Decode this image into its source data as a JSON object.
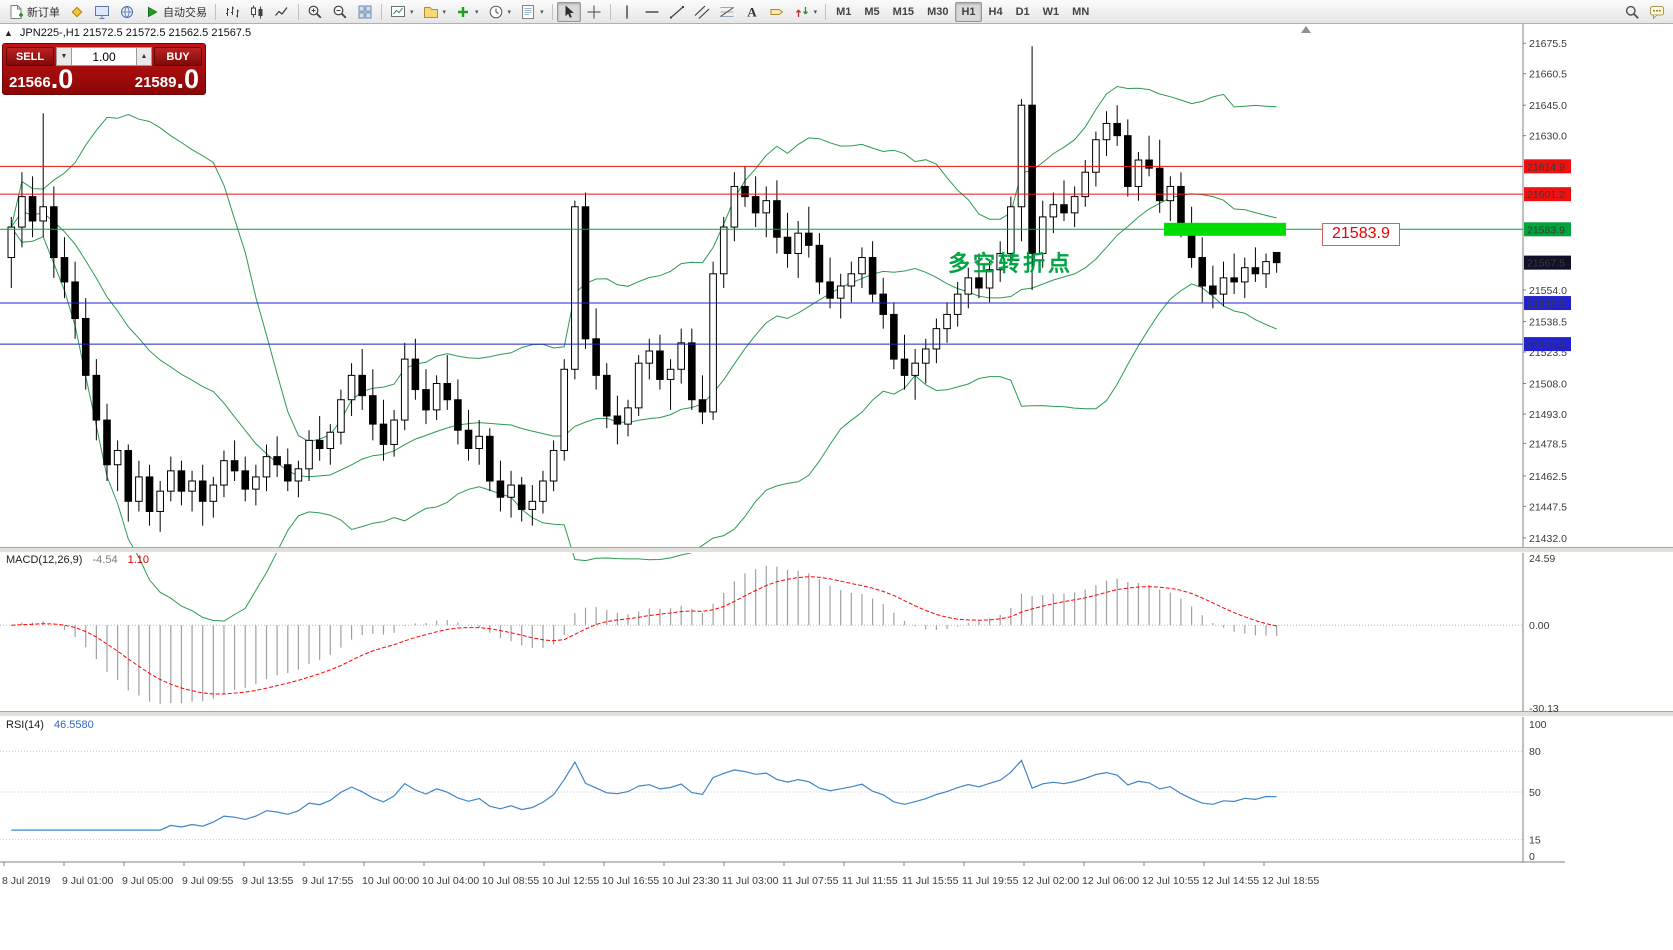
{
  "colors": {
    "red_line": "#ee1111",
    "green_line": "#00a33c",
    "blue_line": "#2222cc",
    "lime_highlight": "#00dd00",
    "panel_red": "#a31010",
    "bollinger": "#2c9b50",
    "macd_hist": "#a0a0a0",
    "macd_signal": "#ff0000",
    "rsi_line": "#3d85c8",
    "current_price_badge": "#101028"
  },
  "toolbar": {
    "caret_char": "▾",
    "groups": [
      {
        "items": [
          {
            "name": "new-order-button",
            "icon": "new-order",
            "label": "新订单"
          }
        ]
      },
      {
        "items": [
          {
            "name": "metaeditor-button",
            "icon": "diamond"
          },
          {
            "name": "market-watch-button",
            "icon": "monitor"
          },
          {
            "name": "community-button",
            "icon": "globe"
          },
          {
            "name": "autotrading-button",
            "icon": "play",
            "label": "自动交易"
          }
        ]
      },
      {
        "sep": true
      },
      {
        "items": [
          {
            "name": "bar-chart-button",
            "icon": "bars"
          },
          {
            "name": "candlestick-chart-button",
            "icon": "candles"
          },
          {
            "name": "line-chart-button",
            "icon": "linechart"
          }
        ]
      },
      {
        "sep": true
      },
      {
        "items": [
          {
            "name": "zoom-in-button",
            "icon": "zoom-in"
          },
          {
            "name": "zoom-out-button",
            "icon": "zoom-out"
          },
          {
            "name": "tile-windows-button",
            "icon": "grid"
          }
        ]
      },
      {
        "sep": true
      },
      {
        "items": [
          {
            "name": "new-chart-button",
            "icon": "new-chart",
            "caret": true
          },
          {
            "name": "profiles-button",
            "icon": "folder",
            "caret": true
          },
          {
            "name": "indicators-button",
            "icon": "indicators",
            "caret": true
          },
          {
            "name": "periods-button",
            "icon": "clock",
            "caret": true
          },
          {
            "name": "templates-button",
            "icon": "template",
            "caret": true
          }
        ]
      },
      {
        "sep": true
      },
      {
        "items": [
          {
            "name": "cursor-button",
            "icon": "cursor",
            "active": true
          },
          {
            "name": "crosshair-button",
            "icon": "crosshair"
          }
        ]
      },
      {
        "sep": true
      },
      {
        "items": [
          {
            "name": "vertical-line-button",
            "icon": "vline"
          },
          {
            "name": "horizontal-line-button",
            "icon": "hline"
          },
          {
            "name": "trendline-button",
            "icon": "trend"
          },
          {
            "name": "channel-button",
            "icon": "channel"
          },
          {
            "name": "fibonacci-button",
            "icon": "fibo"
          },
          {
            "name": "text-button",
            "icon": "text"
          },
          {
            "name": "label-button",
            "icon": "label"
          },
          {
            "name": "arrows-button",
            "icon": "arrows",
            "caret": true
          }
        ]
      },
      {
        "sep": true
      },
      {
        "timeframes": [
          "M1",
          "M5",
          "M15",
          "M30",
          "H1",
          "H4",
          "D1",
          "W1",
          "MN"
        ],
        "active": "H1"
      },
      {
        "spacer": true
      },
      {
        "items": [
          {
            "name": "search-button",
            "icon": "search"
          },
          {
            "name": "chat-button",
            "icon": "chat"
          }
        ]
      }
    ]
  },
  "symbol_bar": {
    "collapse_icon": "▲",
    "text": "JPN225-,H1  21572.5 21572.5 21562.5 21567.5"
  },
  "one_click": {
    "sell_label": "SELL",
    "buy_label": "BUY",
    "volume": "1.00",
    "spin_up": "▲",
    "spin_down": "▼",
    "sell_price": {
      "main": "21566",
      "frac": ".0"
    },
    "buy_price": {
      "main": "21589",
      "frac": ".0"
    }
  },
  "macd": {
    "name": "MACD(12,26,9)",
    "value_main": "-4.54",
    "value_signal": "1.10",
    "axis_labels": [
      "24.59",
      "0.00",
      "-30.13"
    ],
    "axis_values": [
      24.59,
      0,
      -30.13
    ]
  },
  "rsi": {
    "name": "RSI(14)",
    "value": "46.5580",
    "axis_labels": [
      "100",
      "80",
      "50",
      "15",
      "0"
    ],
    "axis_values": [
      100,
      80,
      50,
      15,
      0
    ],
    "levels": [
      80,
      50,
      15
    ]
  },
  "chart_data": {
    "type": "candlestick",
    "symbol": "JPN225-",
    "timeframe": "H1",
    "last_ohlc": {
      "open": 21572.5,
      "high": 21572.5,
      "low": 21562.5,
      "close": 21567.5
    },
    "ylim": [
      21432.0,
      21675.5
    ],
    "price_axis_labels": [
      {
        "price": 21675.5,
        "label": "21675.5"
      },
      {
        "price": 21660.5,
        "label": "21660.5"
      },
      {
        "price": 21645.0,
        "label": "21645.0"
      },
      {
        "price": 21630.0,
        "label": "21630.0"
      },
      {
        "price": 21554.0,
        "label": "21554.0"
      },
      {
        "price": 21538.5,
        "label": "21538.5"
      },
      {
        "price": 21523.5,
        "label": "21523.5"
      },
      {
        "price": 21508.0,
        "label": "21508.0"
      },
      {
        "price": 21493.0,
        "label": "21493.0"
      },
      {
        "price": 21478.5,
        "label": "21478.5"
      },
      {
        "price": 21462.5,
        "label": "21462.5"
      },
      {
        "price": 21447.5,
        "label": "21447.5"
      },
      {
        "price": 21432.0,
        "label": "21432.0"
      }
    ],
    "levels": [
      {
        "price": 21614.9,
        "label": "21614.9",
        "color": "#ee1111"
      },
      {
        "price": 21601.2,
        "label": "21601.2",
        "color": "#ee1111"
      },
      {
        "price": 21583.9,
        "label": "21583.9",
        "color": "#00a33c"
      },
      {
        "price": 21547.6,
        "label": "21547.6",
        "color": "#2222cc"
      },
      {
        "price": 21527.4,
        "label": "21527.4",
        "color": "#2222cc"
      }
    ],
    "current_price": {
      "price": 21567.5,
      "label": "21567.5"
    },
    "highlight": {
      "price": 21583.9,
      "label": "21583.9"
    },
    "annotation": {
      "text": "多空转折点",
      "color": "#00a443"
    },
    "bollinger": {
      "period": 20,
      "deviation": 2
    },
    "time_labels": [
      "8 Jul 2019",
      "9 Jul 01:00",
      "9 Jul 05:00",
      "9 Jul 09:55",
      "9 Jul 13:55",
      "9 Jul 17:55",
      "10 Jul 00:00",
      "10 Jul 04:00",
      "10 Jul 08:55",
      "10 Jul 12:55",
      "10 Jul 16:55",
      "10 Jul 23:30",
      "11 Jul 03:00",
      "11 Jul 07:55",
      "11 Jul 11:55",
      "11 Jul 15:55",
      "11 Jul 19:55",
      "12 Jul 02:00",
      "12 Jul 06:00",
      "12 Jul 10:55",
      "12 Jul 14:55",
      "12 Jul 18:55"
    ],
    "ohlc": [
      [
        21570,
        21590,
        21555,
        21585
      ],
      [
        21585,
        21612,
        21575,
        21600
      ],
      [
        21600,
        21610,
        21580,
        21588
      ],
      [
        21588,
        21641,
        21580,
        21595
      ],
      [
        21595,
        21605,
        21560,
        21570
      ],
      [
        21570,
        21580,
        21550,
        21558
      ],
      [
        21558,
        21568,
        21530,
        21540
      ],
      [
        21540,
        21550,
        21505,
        21512
      ],
      [
        21512,
        21520,
        21480,
        21490
      ],
      [
        21490,
        21498,
        21460,
        21468
      ],
      [
        21468,
        21480,
        21455,
        21475
      ],
      [
        21475,
        21478,
        21440,
        21450
      ],
      [
        21450,
        21470,
        21445,
        21462
      ],
      [
        21462,
        21468,
        21438,
        21445
      ],
      [
        21445,
        21460,
        21435,
        21455
      ],
      [
        21455,
        21472,
        21450,
        21465
      ],
      [
        21465,
        21470,
        21448,
        21455
      ],
      [
        21455,
        21465,
        21445,
        21460
      ],
      [
        21460,
        21468,
        21438,
        21450
      ],
      [
        21450,
        21462,
        21442,
        21458
      ],
      [
        21458,
        21475,
        21452,
        21470
      ],
      [
        21470,
        21480,
        21460,
        21465
      ],
      [
        21465,
        21472,
        21450,
        21456
      ],
      [
        21456,
        21468,
        21448,
        21462
      ],
      [
        21462,
        21478,
        21455,
        21472
      ],
      [
        21472,
        21482,
        21462,
        21468
      ],
      [
        21468,
        21476,
        21455,
        21460
      ],
      [
        21460,
        21470,
        21452,
        21466
      ],
      [
        21466,
        21485,
        21460,
        21480
      ],
      [
        21480,
        21492,
        21470,
        21476
      ],
      [
        21476,
        21488,
        21468,
        21484
      ],
      [
        21484,
        21505,
        21478,
        21500
      ],
      [
        21500,
        21518,
        21492,
        21512
      ],
      [
        21512,
        21525,
        21495,
        21502
      ],
      [
        21502,
        21515,
        21480,
        21488
      ],
      [
        21488,
        21500,
        21470,
        21478
      ],
      [
        21478,
        21495,
        21472,
        21490
      ],
      [
        21490,
        21528,
        21485,
        21520
      ],
      [
        21520,
        21530,
        21500,
        21505
      ],
      [
        21505,
        21515,
        21488,
        21495
      ],
      [
        21495,
        21512,
        21490,
        21508
      ],
      [
        21508,
        21522,
        21495,
        21500
      ],
      [
        21500,
        21510,
        21478,
        21485
      ],
      [
        21485,
        21495,
        21470,
        21476
      ],
      [
        21476,
        21490,
        21468,
        21482
      ],
      [
        21482,
        21486,
        21455,
        21460
      ],
      [
        21460,
        21470,
        21445,
        21452
      ],
      [
        21452,
        21465,
        21442,
        21458
      ],
      [
        21458,
        21462,
        21440,
        21446
      ],
      [
        21446,
        21458,
        21438,
        21450
      ],
      [
        21450,
        21465,
        21444,
        21460
      ],
      [
        21460,
        21480,
        21455,
        21475
      ],
      [
        21475,
        21520,
        21470,
        21515
      ],
      [
        21515,
        21598,
        21510,
        21595
      ],
      [
        21595,
        21602,
        21525,
        21530
      ],
      [
        21530,
        21545,
        21505,
        21512
      ],
      [
        21512,
        21518,
        21486,
        21492
      ],
      [
        21492,
        21502,
        21478,
        21488
      ],
      [
        21488,
        21500,
        21482,
        21496
      ],
      [
        21496,
        21522,
        21492,
        21518
      ],
      [
        21518,
        21530,
        21510,
        21524
      ],
      [
        21524,
        21532,
        21505,
        21510
      ],
      [
        21510,
        21520,
        21495,
        21515
      ],
      [
        21515,
        21535,
        21508,
        21528
      ],
      [
        21528,
        21535,
        21495,
        21500
      ],
      [
        21500,
        21512,
        21488,
        21494
      ],
      [
        21494,
        21568,
        21490,
        21562
      ],
      [
        21562,
        21590,
        21555,
        21585
      ],
      [
        21585,
        21612,
        21578,
        21605
      ],
      [
        21605,
        21615,
        21595,
        21600
      ],
      [
        21600,
        21610,
        21585,
        21592
      ],
      [
        21592,
        21605,
        21580,
        21598
      ],
      [
        21598,
        21608,
        21572,
        21580
      ],
      [
        21580,
        21592,
        21565,
        21572
      ],
      [
        21572,
        21588,
        21560,
        21582
      ],
      [
        21582,
        21595,
        21570,
        21576
      ],
      [
        21576,
        21582,
        21552,
        21558
      ],
      [
        21558,
        21570,
        21545,
        21550
      ],
      [
        21550,
        21562,
        21540,
        21556
      ],
      [
        21556,
        21568,
        21548,
        21562
      ],
      [
        21562,
        21575,
        21555,
        21570
      ],
      [
        21570,
        21578,
        21548,
        21552
      ],
      [
        21552,
        21560,
        21535,
        21542
      ],
      [
        21542,
        21548,
        21515,
        21520
      ],
      [
        21520,
        21532,
        21505,
        21512
      ],
      [
        21512,
        21525,
        21500,
        21518
      ],
      [
        21518,
        21530,
        21508,
        21525
      ],
      [
        21525,
        21540,
        21518,
        21535
      ],
      [
        21535,
        21548,
        21528,
        21542
      ],
      [
        21542,
        21558,
        21536,
        21552
      ],
      [
        21552,
        21565,
        21545,
        21560
      ],
      [
        21560,
        21572,
        21550,
        21555
      ],
      [
        21555,
        21568,
        21548,
        21564
      ],
      [
        21564,
        21578,
        21558,
        21572
      ],
      [
        21572,
        21600,
        21568,
        21595
      ],
      [
        21595,
        21648,
        21578,
        21645
      ],
      [
        21645,
        21674,
        21554,
        21572
      ],
      [
        21572,
        21598,
        21565,
        21590
      ],
      [
        21590,
        21602,
        21582,
        21596
      ],
      [
        21596,
        21608,
        21588,
        21592
      ],
      [
        21592,
        21605,
        21585,
        21600
      ],
      [
        21600,
        21618,
        21595,
        21612
      ],
      [
        21612,
        21632,
        21605,
        21628
      ],
      [
        21628,
        21642,
        21620,
        21636
      ],
      [
        21636,
        21645,
        21625,
        21630
      ],
      [
        21630,
        21638,
        21600,
        21605
      ],
      [
        21605,
        21622,
        21598,
        21618
      ],
      [
        21618,
        21630,
        21610,
        21614
      ],
      [
        21614,
        21628,
        21592,
        21598
      ],
      [
        21598,
        21610,
        21588,
        21605
      ],
      [
        21605,
        21612,
        21580,
        21586
      ],
      [
        21586,
        21595,
        21565,
        21570
      ],
      [
        21570,
        21580,
        21548,
        21556
      ],
      [
        21556,
        21566,
        21545,
        21552
      ],
      [
        21552,
        21568,
        21546,
        21560
      ],
      [
        21560,
        21572,
        21552,
        21558
      ],
      [
        21558,
        21570,
        21550,
        21565
      ],
      [
        21565,
        21575,
        21558,
        21562
      ],
      [
        21562,
        21572,
        21555,
        21568
      ],
      [
        21572.5,
        21572.5,
        21562.5,
        21567.5
      ]
    ]
  }
}
